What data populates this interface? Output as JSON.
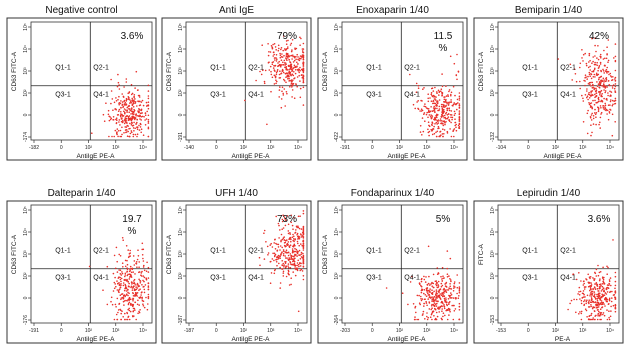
{
  "chart_data": [
    {
      "type": "scatter",
      "title": "Negative control",
      "xlabel": "AntiIgE PE-A",
      "ylabel": "CD63 FITC-A",
      "percent": "3.6%",
      "quadrants": [
        "Q1-1",
        "Q2-1",
        "Q3-1",
        "Q4-1"
      ],
      "x_ticks": [
        "-182",
        "0",
        "10²",
        "10³",
        "10⁴"
      ],
      "y_ticks": [
        "-174",
        "0",
        "10²",
        "10³",
        "10⁴",
        "10⁵"
      ],
      "population": {
        "upper_right_fraction": 0.036,
        "x_center": 0.82,
        "y_center": 0.22,
        "x_spread": 0.08,
        "y_spread": 0.1
      }
    },
    {
      "type": "scatter",
      "title": "Anti IgE",
      "xlabel": "AntiIgE PE-A",
      "ylabel": "CD63 FITC-A",
      "percent": "79%",
      "quadrants": [
        "Q1-1",
        "Q2-1",
        "Q3-1",
        "Q4-1"
      ],
      "x_ticks": [
        "-140",
        "0",
        "10²",
        "10³",
        "10⁴"
      ],
      "y_ticks": [
        "-191",
        "0",
        "10²",
        "10³",
        "10⁴",
        "10⁵"
      ],
      "population": {
        "upper_right_fraction": 0.79,
        "x_center": 0.85,
        "y_center": 0.62,
        "x_spread": 0.09,
        "y_spread": 0.1
      }
    },
    {
      "type": "scatter",
      "title": "Enoxaparin 1/40",
      "xlabel": "AntiIgE PE-A",
      "ylabel": "CD63 FITC-A",
      "percent": "11.5\n%",
      "quadrants": [
        "Q1-1",
        "Q2-1",
        "Q3-1",
        "Q4-1"
      ],
      "x_ticks": [
        "-191",
        "0",
        "10²",
        "10³",
        "10⁴"
      ],
      "y_ticks": [
        "-422",
        "0",
        "10²",
        "10³",
        "10⁴",
        "10⁵"
      ],
      "population": {
        "upper_right_fraction": 0.115,
        "x_center": 0.82,
        "y_center": 0.25,
        "x_spread": 0.09,
        "y_spread": 0.12
      }
    },
    {
      "type": "scatter",
      "title": "Bemiparin 1/40",
      "xlabel": "AntiIgE PE-A",
      "ylabel": "CD63 FITC-A",
      "percent": "42%",
      "quadrants": [
        "Q1-1",
        "Q2-1",
        "Q3-1",
        "Q4-1"
      ],
      "x_ticks": [
        "-104",
        "0",
        "10²",
        "10³",
        "10⁴"
      ],
      "y_ticks": [
        "-132",
        "0",
        "10²",
        "10³",
        "10⁴",
        "10⁵"
      ],
      "population": {
        "upper_right_fraction": 0.42,
        "x_center": 0.84,
        "y_center": 0.45,
        "x_spread": 0.08,
        "y_spread": 0.16
      }
    },
    {
      "type": "scatter",
      "title": "Dalteparin 1/40",
      "xlabel": "AntiIgE PE-A",
      "ylabel": "CD63 FITC-A",
      "percent": "19.7\n%",
      "quadrants": [
        "Q1-1",
        "Q2-1",
        "Q3-1",
        "Q4-1"
      ],
      "x_ticks": [
        "-191",
        "0",
        "10²",
        "10³",
        "10⁴"
      ],
      "y_ticks": [
        "-176",
        "0",
        "10²",
        "10³",
        "10⁴",
        "10⁵"
      ],
      "population": {
        "upper_right_fraction": 0.197,
        "x_center": 0.82,
        "y_center": 0.3,
        "x_spread": 0.08,
        "y_spread": 0.14
      }
    },
    {
      "type": "scatter",
      "title": "UFH 1/40",
      "xlabel": "AntiIgE PE-A",
      "ylabel": "CD63 FITC-A",
      "percent": "73%",
      "quadrants": [
        "Q1-1",
        "Q2-1",
        "Q3-1",
        "Q4-1"
      ],
      "x_ticks": [
        "-187",
        "0",
        "10²",
        "10³",
        "10⁴"
      ],
      "y_ticks": [
        "-187",
        "0",
        "10²",
        "10³",
        "10⁴",
        "10⁵"
      ],
      "population": {
        "upper_right_fraction": 0.73,
        "x_center": 0.86,
        "y_center": 0.6,
        "x_spread": 0.09,
        "y_spread": 0.12
      }
    },
    {
      "type": "scatter",
      "title": "Fondaparinux 1/40",
      "xlabel": "AntiIgE PE-A",
      "ylabel": "CD63 FITC-A",
      "percent": "5%",
      "quadrants": [
        "Q1-1",
        "Q2-1",
        "Q3-1",
        "Q4-1"
      ],
      "x_ticks": [
        "-203",
        "0",
        "10²",
        "10³",
        "10⁴"
      ],
      "y_ticks": [
        "-264",
        "0",
        "10²",
        "10³",
        "10⁴",
        "10⁵"
      ],
      "population": {
        "upper_right_fraction": 0.05,
        "x_center": 0.8,
        "y_center": 0.22,
        "x_spread": 0.09,
        "y_spread": 0.1
      }
    },
    {
      "type": "scatter",
      "title": "Lepirudin 1/40",
      "xlabel": "PE-A",
      "ylabel": "FITC-A",
      "percent": "3.6%",
      "quadrants": [
        "Q1-1",
        "Q2-1",
        "Q3-1",
        "Q4-1"
      ],
      "x_ticks": [
        "-153",
        "0",
        "10²",
        "10³",
        "10⁴"
      ],
      "y_ticks": [
        "-153",
        "0",
        "10²",
        "10³",
        "10⁴",
        "10⁵"
      ],
      "population": {
        "upper_right_fraction": 0.036,
        "x_center": 0.82,
        "y_center": 0.23,
        "x_spread": 0.08,
        "y_spread": 0.1
      }
    }
  ],
  "colors": {
    "dots": "#e8302a",
    "gate": "#222222",
    "frame": "#333333"
  }
}
